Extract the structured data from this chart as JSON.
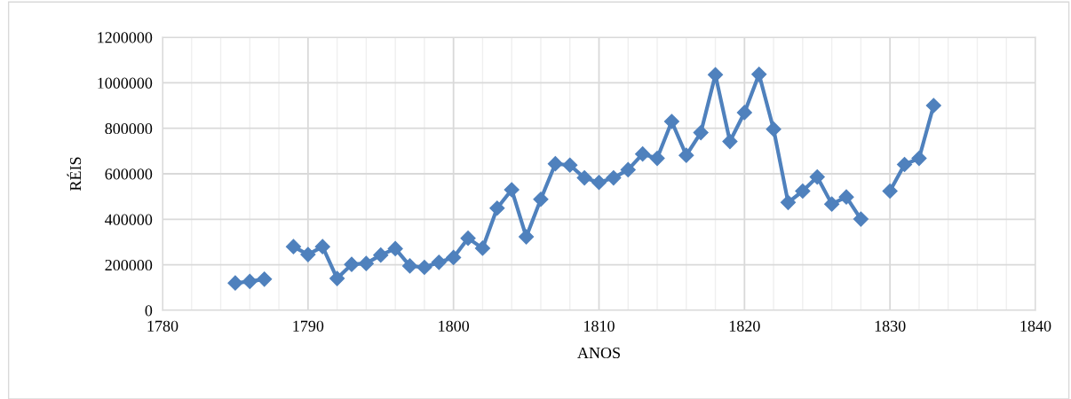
{
  "chart_data": {
    "type": "line",
    "xlabel": "ANOS",
    "ylabel": "RÉIS",
    "x": [
      1785,
      1786,
      1787,
      1788,
      1789,
      1790,
      1791,
      1792,
      1793,
      1794,
      1795,
      1796,
      1797,
      1798,
      1799,
      1800,
      1801,
      1802,
      1803,
      1804,
      1805,
      1806,
      1807,
      1808,
      1809,
      1810,
      1811,
      1812,
      1813,
      1814,
      1815,
      1816,
      1817,
      1818,
      1819,
      1820,
      1821,
      1822,
      1823,
      1824,
      1825,
      1826,
      1827,
      1828,
      1829,
      1830,
      1831,
      1832,
      1833
    ],
    "series": [
      {
        "color": "#4f81bd",
        "values": [
          120000,
          127000,
          137000,
          null,
          280000,
          245000,
          280000,
          140000,
          202000,
          206000,
          243000,
          271000,
          195000,
          189000,
          211000,
          232000,
          317000,
          273000,
          449000,
          530000,
          323000,
          488000,
          644000,
          638000,
          582000,
          562000,
          582000,
          618000,
          687000,
          668000,
          830000,
          681000,
          781000,
          1035000,
          742000,
          869000,
          1037000,
          796000,
          474000,
          524000,
          586000,
          467000,
          498000,
          401000,
          null,
          524000,
          641000,
          668000,
          900000
        ]
      }
    ],
    "xlim": [
      1780,
      1840
    ],
    "xticks": [
      1780,
      1790,
      1800,
      1810,
      1820,
      1830,
      1840
    ],
    "ylim": [
      0,
      1200000
    ],
    "yticks": [
      0,
      200000,
      400000,
      600000,
      800000,
      1000000,
      1200000
    ],
    "grid": true,
    "marker": "diamond",
    "line_style": "solid",
    "legend": false
  }
}
